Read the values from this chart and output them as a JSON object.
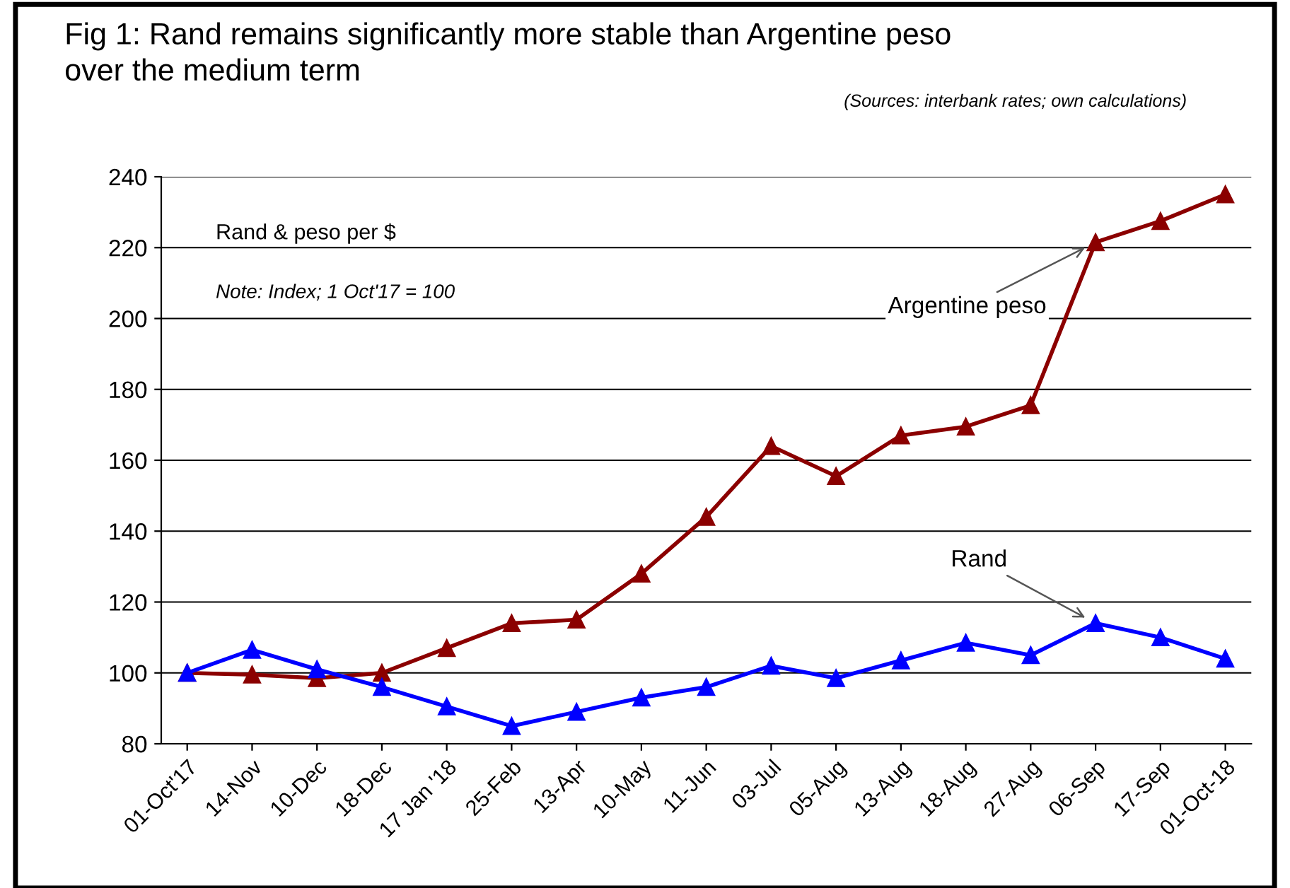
{
  "chart_data": {
    "type": "line",
    "title": "Fig 1: Rand remains significantly more stable than Argentine peso\nover the medium term",
    "subtitle": "(Sources: interbank rates; own calculations)",
    "categories": [
      "01-Oct'17",
      "14-Nov",
      "10-Dec",
      "18-Dec",
      "17 Jan '18",
      "25-Feb",
      "13-Apr",
      "10-May",
      "11-Jun",
      "03-Jul",
      "05-Aug",
      "13-Aug",
      "18-Aug",
      "27-Aug",
      "06-Sep",
      "17-Sep",
      "01-Oct-18"
    ],
    "series": [
      {
        "name": "Argentine peso",
        "color": "#8b0000",
        "values": [
          100,
          99.5,
          98.5,
          100,
          107,
          114,
          115,
          128,
          144,
          164,
          155.5,
          167,
          169.5,
          175.5,
          221.5,
          227.5,
          235
        ]
      },
      {
        "name": "Rand",
        "color": "#0000ff",
        "values": [
          100,
          106.5,
          101,
          96,
          90.5,
          85,
          89,
          93,
          96,
          102,
          98.5,
          103.5,
          108.5,
          105,
          114,
          110,
          104
        ]
      }
    ],
    "annotations": [
      "Rand & peso per $",
      "Note: Index; 1 Oct'17 = 100"
    ],
    "ylim": [
      80,
      240
    ],
    "yticks": [
      80,
      100,
      120,
      140,
      160,
      180,
      200,
      220,
      240
    ],
    "grid": "y",
    "marker": "triangle",
    "line_style": "solid"
  }
}
